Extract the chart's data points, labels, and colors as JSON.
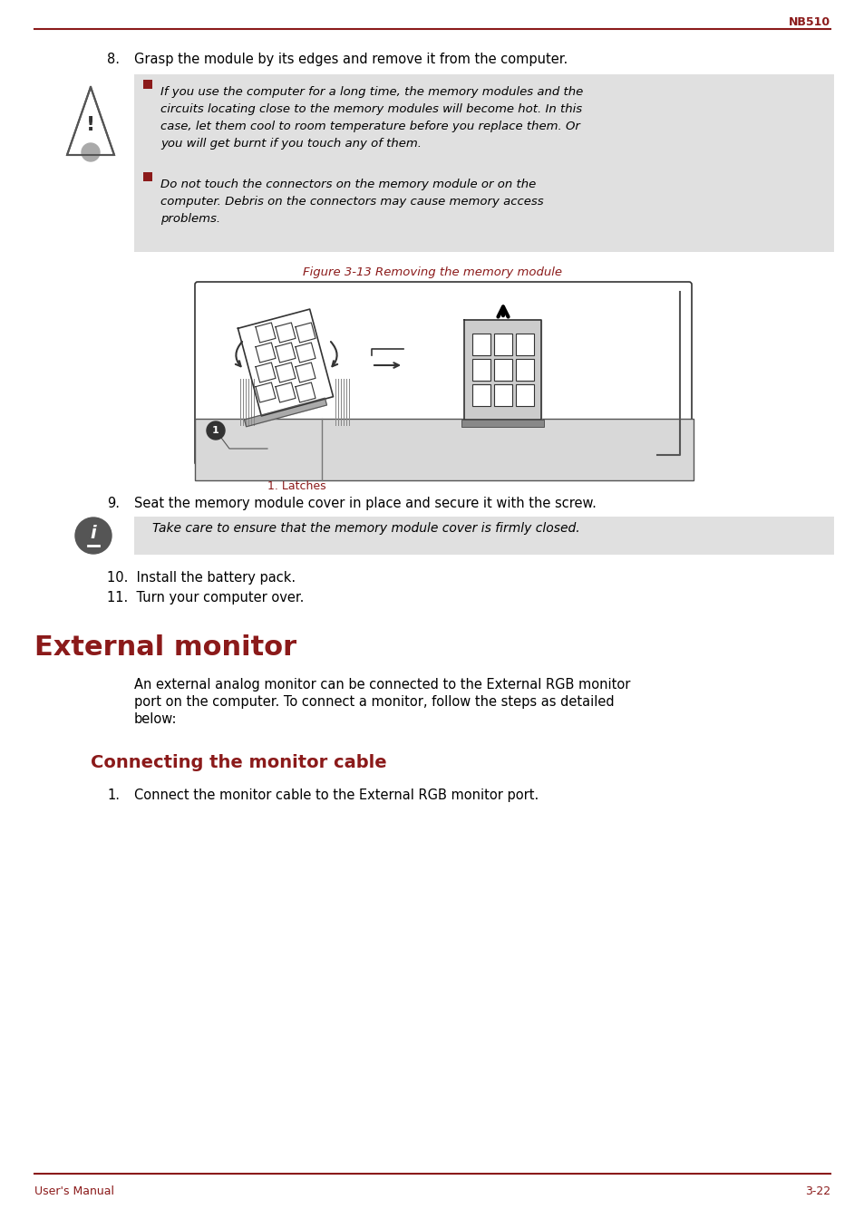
{
  "page_title": "NB510",
  "footer_left": "User's Manual",
  "footer_right": "3-22",
  "accent_red": "#8B1A1A",
  "bg_color": "#ffffff",
  "warning_bg": "#e0e0e0",
  "info_bg": "#e0e0e0",
  "step8_text_num": "8.",
  "step8_text_body": "Grasp the module by its edges and remove it from the computer.",
  "warn_bullet1_lines": [
    "If you use the computer for a long time, the memory modules and the",
    "circuits locating close to the memory modules will become hot. In this",
    "case, let them cool to room temperature before you replace them. Or",
    "you will get burnt if you touch any of them."
  ],
  "warn_bullet2_lines": [
    "Do not touch the connectors on the memory module or on the",
    "computer. Debris on the connectors may cause memory access",
    "problems."
  ],
  "figure_caption": "Figure 3-13 Removing the memory module",
  "latches_label": "1. Latches",
  "step9_num": "9.",
  "step9_body": "Seat the memory module cover in place and secure it with the screw.",
  "info_text": "Take care to ensure that the memory module cover is firmly closed.",
  "step10": "10.  Install the battery pack.",
  "step11": "11.  Turn your computer over.",
  "section_title": "External monitor",
  "intro_lines": [
    "An external analog monitor can be connected to the External RGB monitor",
    "port on the computer. To connect a monitor, follow the steps as detailed",
    "below:"
  ],
  "subsection_title": "Connecting the monitor cable",
  "step1_num": "1.",
  "step1_body": "Connect the monitor cable to the External RGB monitor port."
}
